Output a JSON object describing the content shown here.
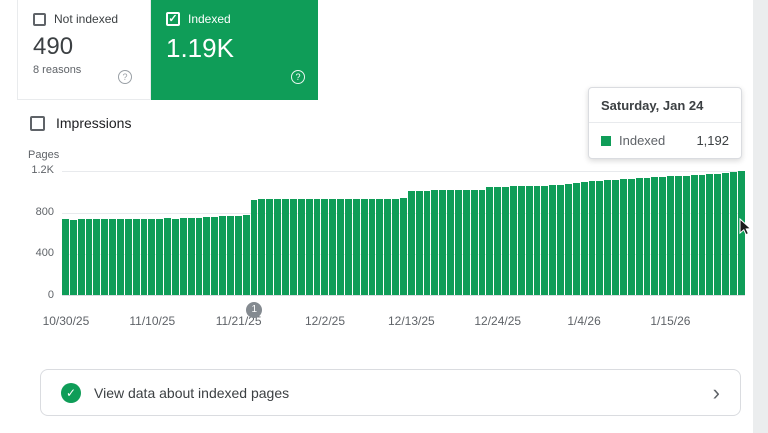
{
  "colors": {
    "green": "#0f9d58",
    "marker_gray": "#848a90"
  },
  "icons": {
    "check": "✓",
    "help": "?",
    "chevron": "›"
  },
  "cards": {
    "not_indexed": {
      "label": "Not indexed",
      "value": "490",
      "sub": "8 reasons",
      "checked": false
    },
    "indexed": {
      "label": "Indexed",
      "value": "1.19K",
      "checked": true
    }
  },
  "tooltip": {
    "title": "Saturday, Jan 24",
    "series_label": "Indexed",
    "value": "1,192"
  },
  "controls": {
    "impressions_label": "Impressions",
    "impressions_checked": false
  },
  "cta": {
    "label": "View data about indexed pages"
  },
  "chart_data": {
    "type": "bar",
    "ylabel": "Pages",
    "ylim": [
      0,
      1200
    ],
    "series_name": "Indexed",
    "legend_position": "tooltip",
    "grid": true,
    "y_ticks": [
      {
        "label": "0",
        "value": 0
      },
      {
        "label": "400",
        "value": 400
      },
      {
        "label": "800",
        "value": 800
      },
      {
        "label": "1.2K",
        "value": 1200
      }
    ],
    "x_ticks": [
      {
        "label": "10/30/25",
        "index": 0
      },
      {
        "label": "11/10/25",
        "index": 11
      },
      {
        "label": "11/21/25",
        "index": 22
      },
      {
        "label": "12/2/25",
        "index": 33
      },
      {
        "label": "12/13/25",
        "index": 44
      },
      {
        "label": "12/24/25",
        "index": 55
      },
      {
        "label": "1/4/26",
        "index": 66
      },
      {
        "label": "1/15/26",
        "index": 77
      }
    ],
    "annotation": {
      "label": "1",
      "index": 24
    },
    "values": [
      730,
      726,
      728,
      731,
      729,
      733,
      728,
      730,
      734,
      731,
      728,
      735,
      733,
      736,
      734,
      738,
      740,
      743,
      746,
      750,
      755,
      758,
      762,
      766,
      918,
      920,
      919,
      921,
      920,
      922,
      921,
      923,
      922,
      924,
      923,
      925,
      924,
      926,
      925,
      927,
      926,
      928,
      927,
      929,
      1002,
      1004,
      1003,
      1006,
      1005,
      1008,
      1007,
      1010,
      1009,
      1012,
      1040,
      1043,
      1042,
      1045,
      1047,
      1046,
      1049,
      1051,
      1058,
      1062,
      1068,
      1075,
      1085,
      1092,
      1098,
      1104,
      1110,
      1114,
      1118,
      1122,
      1127,
      1131,
      1136,
      1140,
      1144,
      1149,
      1153,
      1158,
      1163,
      1168,
      1174,
      1183,
      1192
    ]
  }
}
